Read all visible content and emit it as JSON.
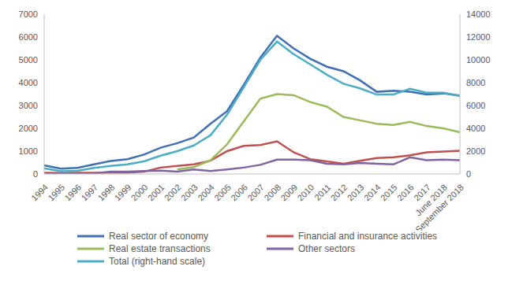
{
  "chart_data": {
    "type": "line",
    "categories": [
      "1994",
      "1995",
      "1996",
      "1997",
      "1998",
      "1999",
      "2000",
      "2001",
      "2002",
      "2003",
      "2004",
      "2005",
      "2006",
      "2007",
      "2008",
      "2009",
      "2010",
      "2011",
      "2012",
      "2013",
      "2014",
      "2015",
      "2016",
      "2017",
      "June 2018",
      "September 2018"
    ],
    "series": [
      {
        "name": "Real sector of economy",
        "color": "#3f6fb5",
        "values": [
          380,
          230,
          270,
          420,
          570,
          650,
          850,
          1150,
          1350,
          1600,
          2200,
          2750,
          3900,
          5100,
          6050,
          5500,
          5050,
          4700,
          4500,
          4100,
          3600,
          3650,
          3600,
          3480,
          3530,
          3430
        ]
      },
      {
        "name": "Financial and insurance activities",
        "color": "#c0504d",
        "values": [
          50,
          40,
          50,
          50,
          60,
          60,
          100,
          280,
          350,
          420,
          580,
          1000,
          1230,
          1270,
          1430,
          950,
          650,
          550,
          450,
          580,
          700,
          730,
          820,
          950,
          980,
          1020
        ]
      },
      {
        "name": "Real estate transactions",
        "color": "#9bbb59",
        "values": [
          null,
          null,
          null,
          null,
          null,
          null,
          null,
          null,
          200,
          300,
          600,
          1300,
          2300,
          3300,
          3500,
          3450,
          3150,
          2950,
          2500,
          2350,
          2200,
          2150,
          2280,
          2100,
          2000,
          1830
        ]
      },
      {
        "name": "Other sectors",
        "color": "#8064a2",
        "values": [
          30,
          20,
          20,
          30,
          100,
          100,
          130,
          150,
          100,
          200,
          130,
          200,
          280,
          400,
          630,
          630,
          600,
          450,
          420,
          480,
          450,
          420,
          730,
          600,
          630,
          600
        ]
      },
      {
        "name": "Total (right-hand scale)",
        "color": "#4bacc6",
        "axis": "y2",
        "values": [
          500,
          240,
          280,
          540,
          700,
          840,
          1100,
          1600,
          2000,
          2500,
          3400,
          5200,
          7600,
          10000,
          11600,
          10500,
          9600,
          8700,
          7900,
          7500,
          6960,
          6960,
          7460,
          7120,
          7120,
          6840
        ]
      }
    ],
    "ylim": [
      0,
      7000
    ],
    "yticks": [
      0,
      1000,
      2000,
      3000,
      4000,
      5000,
      6000,
      7000
    ],
    "y2lim": [
      0,
      14000
    ],
    "y2ticks": [
      0,
      2000,
      4000,
      6000,
      8000,
      10000,
      12000,
      14000
    ],
    "grid": false,
    "legend": "bottom"
  }
}
